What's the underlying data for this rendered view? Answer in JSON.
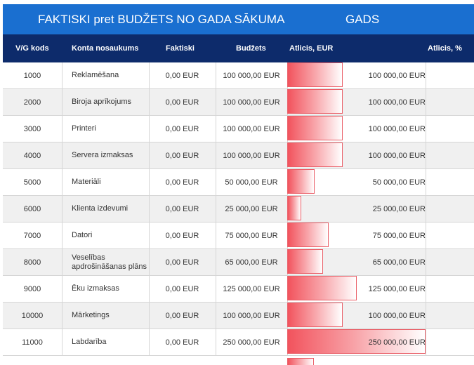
{
  "title": {
    "left": "FAKTISKI pret BUDŽETS NO GADA SĀKUMA",
    "right": "GADS"
  },
  "columns": {
    "code": "V/G kods",
    "name": "Konta nosaukums",
    "actual": "Faktiski",
    "budget": "Budžets",
    "remaining_eur": "Atlicis, EUR",
    "remaining_pct": "Atlicis, %"
  },
  "colors": {
    "title_bar": "#1a6fd0",
    "header_bar": "#0d2b6b",
    "data_bar": "#f2535d"
  },
  "rows": [
    {
      "code": "1000",
      "name": "Reklamēšana",
      "actual": "0,00 EUR",
      "budget": "100 000,00 EUR",
      "remaining": "100 000,00 EUR",
      "remaining_value": 100000
    },
    {
      "code": "2000",
      "name": "Biroja aprīkojums",
      "actual": "0,00 EUR",
      "budget": "100 000,00 EUR",
      "remaining": "100 000,00 EUR",
      "remaining_value": 100000
    },
    {
      "code": "3000",
      "name": "Printeri",
      "actual": "0,00 EUR",
      "budget": "100 000,00 EUR",
      "remaining": "100 000,00 EUR",
      "remaining_value": 100000
    },
    {
      "code": "4000",
      "name": "Servera izmaksas",
      "actual": "0,00 EUR",
      "budget": "100 000,00 EUR",
      "remaining": "100 000,00 EUR",
      "remaining_value": 100000
    },
    {
      "code": "5000",
      "name": "Materiāli",
      "actual": "0,00 EUR",
      "budget": "50 000,00 EUR",
      "remaining": "50 000,00 EUR",
      "remaining_value": 50000
    },
    {
      "code": "6000",
      "name": "Klienta izdevumi",
      "actual": "0,00 EUR",
      "budget": "25 000,00 EUR",
      "remaining": "25 000,00 EUR",
      "remaining_value": 25000
    },
    {
      "code": "7000",
      "name": "Datori",
      "actual": "0,00 EUR",
      "budget": "75 000,00 EUR",
      "remaining": "75 000,00 EUR",
      "remaining_value": 75000
    },
    {
      "code": "8000",
      "name": "Veselības apdrošināšanas plāns",
      "actual": "0,00 EUR",
      "budget": "65 000,00 EUR",
      "remaining": "65 000,00 EUR",
      "remaining_value": 65000
    },
    {
      "code": "9000",
      "name": "Ēku izmaksas",
      "actual": "0,00 EUR",
      "budget": "125 000,00 EUR",
      "remaining": "125 000,00 EUR",
      "remaining_value": 125000
    },
    {
      "code": "10000",
      "name": "Mārketings",
      "actual": "0,00 EUR",
      "budget": "100 000,00 EUR",
      "remaining": "100 000,00 EUR",
      "remaining_value": 100000
    },
    {
      "code": "11000",
      "name": "Labdarība",
      "actual": "0,00 EUR",
      "budget": "250 000,00 EUR",
      "remaining": "250 000,00 EUR",
      "remaining_value": 250000
    }
  ]
}
